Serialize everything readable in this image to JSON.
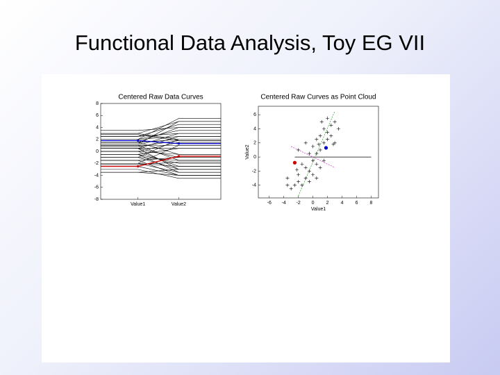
{
  "slide_title": "Functional Data Analysis, Toy EG VII",
  "chart_data": [
    {
      "type": "parallel",
      "title": "Centered Raw Data Curves",
      "categories": [
        "Value1",
        "Value2"
      ],
      "ylim": [
        -8,
        8
      ],
      "yticks": [
        -8,
        -6,
        -4,
        -2,
        0,
        2,
        4,
        6,
        8
      ],
      "series": [
        {
          "color": "#000000",
          "values": [
            -3,
            -4.5
          ]
        },
        {
          "color": "#000000",
          "values": [
            -2.5,
            -4
          ]
        },
        {
          "color": "#000000",
          "values": [
            -2,
            -3.5
          ]
        },
        {
          "color": "#000000",
          "values": [
            -3.5,
            -3
          ]
        },
        {
          "color": "#000000",
          "values": [
            -1.5,
            -4
          ]
        },
        {
          "color": "#000000",
          "values": [
            -1,
            -3
          ]
        },
        {
          "color": "#000000",
          "values": [
            -2,
            -2.5
          ]
        },
        {
          "color": "#000000",
          "values": [
            -0.5,
            -2
          ]
        },
        {
          "color": "#000000",
          "values": [
            0,
            -2.5
          ]
        },
        {
          "color": "#000000",
          "values": [
            -1,
            -1.5
          ]
        },
        {
          "color": "#000000",
          "values": [
            0.5,
            -1
          ]
        },
        {
          "color": "#000000",
          "values": [
            0,
            -0.5
          ]
        },
        {
          "color": "#000000",
          "values": [
            1,
            -1.5
          ]
        },
        {
          "color": "#000000",
          "values": [
            -0.5,
            0.5
          ]
        },
        {
          "color": "#000000",
          "values": [
            0.5,
            0.5
          ]
        },
        {
          "color": "#000000",
          "values": [
            1,
            1
          ]
        },
        {
          "color": "#000000",
          "values": [
            0,
            1.5
          ]
        },
        {
          "color": "#000000",
          "values": [
            1.5,
            2
          ]
        },
        {
          "color": "#000000",
          "values": [
            2,
            2.5
          ]
        },
        {
          "color": "#000000",
          "values": [
            1,
            3
          ]
        },
        {
          "color": "#000000",
          "values": [
            2,
            3.5
          ]
        },
        {
          "color": "#000000",
          "values": [
            0.5,
            2.5
          ]
        },
        {
          "color": "#000000",
          "values": [
            2.5,
            3
          ]
        },
        {
          "color": "#000000",
          "values": [
            1.5,
            4
          ]
        },
        {
          "color": "#000000",
          "values": [
            2.5,
            4.5
          ]
        },
        {
          "color": "#000000",
          "values": [
            3,
            5
          ]
        },
        {
          "color": "#000000",
          "values": [
            2,
            5.5
          ]
        },
        {
          "color": "#000000",
          "values": [
            -1,
            2
          ]
        },
        {
          "color": "#000000",
          "values": [
            -2,
            1
          ]
        },
        {
          "color": "#000000",
          "values": [
            3,
            2
          ]
        },
        {
          "color": "#000000",
          "values": [
            -3.5,
            -4
          ]
        },
        {
          "color": "#000000",
          "values": [
            1.5,
            -0.5
          ]
        },
        {
          "color": "#000000",
          "values": [
            0.5,
            -3
          ]
        },
        {
          "color": "#000000",
          "values": [
            -1.5,
            -1
          ]
        },
        {
          "color": "#000000",
          "values": [
            2.8,
            1.8
          ]
        },
        {
          "color": "#000000",
          "values": [
            1.2,
            5
          ]
        },
        {
          "color": "#000000",
          "values": [
            3.5,
            4
          ]
        },
        {
          "color": "#000000",
          "values": [
            -0.5,
            -3.5
          ]
        },
        {
          "color": "#000000",
          "values": [
            0.8,
            1.8
          ]
        },
        {
          "color": "#000000",
          "values": [
            -2.2,
            -1.8
          ]
        },
        {
          "color": "#0000cc",
          "values": [
            1.8,
            1.3
          ]
        },
        {
          "color": "#cc0000",
          "values": [
            -2.5,
            -0.8
          ]
        }
      ]
    },
    {
      "type": "scatter",
      "title": "Centered Raw Curves as Point Cloud",
      "x_label": "Value1",
      "y_label": "Value2",
      "xlim": [
        -7.5,
        9
      ],
      "xticks": [
        -6,
        -4,
        -2,
        0,
        2,
        4,
        6,
        8
      ],
      "ylim": [
        -5.8,
        7.2
      ],
      "yticks": [
        -4,
        -2,
        0,
        2,
        4,
        6
      ],
      "series": [
        {
          "color": "#000000",
          "marker": "plus",
          "x": [
            -3,
            -2.5,
            -2,
            -3.5,
            -1.5,
            -1,
            -2,
            -0.5,
            0,
            -1,
            0.5,
            0,
            1,
            -0.5,
            0.5,
            1,
            0,
            1.5,
            2,
            1,
            2,
            0.5,
            2.5,
            1.5,
            2.5,
            3,
            2,
            -1,
            -2,
            3,
            -3.5,
            1.5,
            0.5,
            -1.5,
            2.8,
            1.2,
            3.5,
            -0.5,
            0.8,
            -2.2
          ],
          "values": [
            -4.5,
            -4,
            -3.5,
            -3,
            -4,
            -3,
            -2.5,
            -2,
            -2.5,
            -1.5,
            -1,
            -0.5,
            -1.5,
            0.5,
            0.5,
            1,
            1.5,
            2,
            2.5,
            3,
            3.5,
            2.5,
            3,
            4,
            4.5,
            5,
            5.5,
            2,
            1,
            2,
            -4,
            -0.5,
            -3,
            -1,
            1.8,
            5,
            4,
            -3.5,
            1.8,
            -1.8
          ]
        },
        {
          "color": "#0000cc",
          "marker": "dot",
          "x": [
            1.8
          ],
          "values": [
            1.3
          ]
        },
        {
          "color": "#cc0000",
          "marker": "dot",
          "x": [
            -2.5
          ],
          "values": [
            -0.8
          ]
        }
      ],
      "lines": [
        {
          "color": "#000000",
          "dash": false,
          "x": [
            -2.5,
            8
          ],
          "values": [
            0,
            0
          ]
        },
        {
          "color": "#2ca02c",
          "dash": true,
          "x": [
            -2,
            3
          ],
          "values": [
            -5.5,
            6.5
          ]
        },
        {
          "color": "#cc33cc",
          "dash": true,
          "x": [
            -3,
            3
          ],
          "values": [
            1.5,
            -1.5
          ]
        }
      ]
    }
  ]
}
